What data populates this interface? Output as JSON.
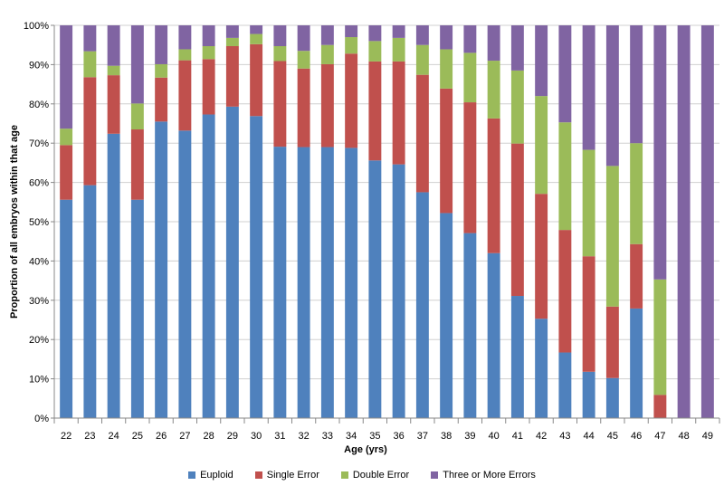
{
  "chart_data": {
    "type": "bar",
    "stacked": true,
    "normalized": true,
    "xlabel": "Age (yrs)",
    "ylabel": "Proportion of all embryos within that age",
    "ylim": [
      0,
      100
    ],
    "yticks": [
      "0%",
      "10%",
      "20%",
      "30%",
      "40%",
      "50%",
      "60%",
      "70%",
      "80%",
      "90%",
      "100%"
    ],
    "grid": "horizontal",
    "legend_position": "bottom",
    "categories": [
      "22",
      "23",
      "24",
      "25",
      "26",
      "27",
      "28",
      "29",
      "30",
      "31",
      "32",
      "33",
      "34",
      "35",
      "36",
      "37",
      "38",
      "39",
      "40",
      "41",
      "42",
      "43",
      "44",
      "45",
      "46",
      "47",
      "48",
      "49"
    ],
    "series": [
      {
        "name": "Euploid",
        "color": "#4f81bd",
        "values": [
          55.6,
          59.3,
          72.4,
          55.6,
          75.5,
          73.2,
          77.3,
          79.3,
          76.9,
          69.1,
          69.0,
          69.0,
          68.8,
          65.6,
          64.6,
          57.5,
          52.2,
          47.1,
          42.0,
          31.1,
          25.3,
          16.7,
          11.8,
          10.2,
          27.9,
          0,
          0,
          0
        ]
      },
      {
        "name": "Single Error",
        "color": "#c0504d",
        "values": [
          13.9,
          27.5,
          14.9,
          17.9,
          11.2,
          17.9,
          14.1,
          15.4,
          18.3,
          21.8,
          20.0,
          21.1,
          24.0,
          25.2,
          26.2,
          29.9,
          31.7,
          33.3,
          34.3,
          38.8,
          31.8,
          31.2,
          29.4,
          18.2,
          16.4,
          5.9,
          0,
          0
        ]
      },
      {
        "name": "Double Error",
        "color": "#9bbb59",
        "values": [
          4.2,
          6.6,
          2.4,
          6.6,
          3.4,
          2.8,
          3.3,
          2.1,
          2.6,
          3.8,
          4.5,
          4.9,
          4.2,
          5.2,
          6.0,
          7.6,
          10.0,
          12.6,
          14.7,
          18.6,
          24.9,
          27.4,
          27.1,
          35.8,
          25.7,
          29.4,
          0,
          0
        ]
      },
      {
        "name": "Three or More Errors",
        "color": "#8064a2",
        "values": [
          26.3,
          6.6,
          10.3,
          19.9,
          9.9,
          6.1,
          5.3,
          3.2,
          2.2,
          5.3,
          6.5,
          5.0,
          3.0,
          4.0,
          3.2,
          5.0,
          6.1,
          7.0,
          9.0,
          11.5,
          18.0,
          24.7,
          31.7,
          35.8,
          30.0,
          64.7,
          100,
          100
        ]
      }
    ]
  }
}
